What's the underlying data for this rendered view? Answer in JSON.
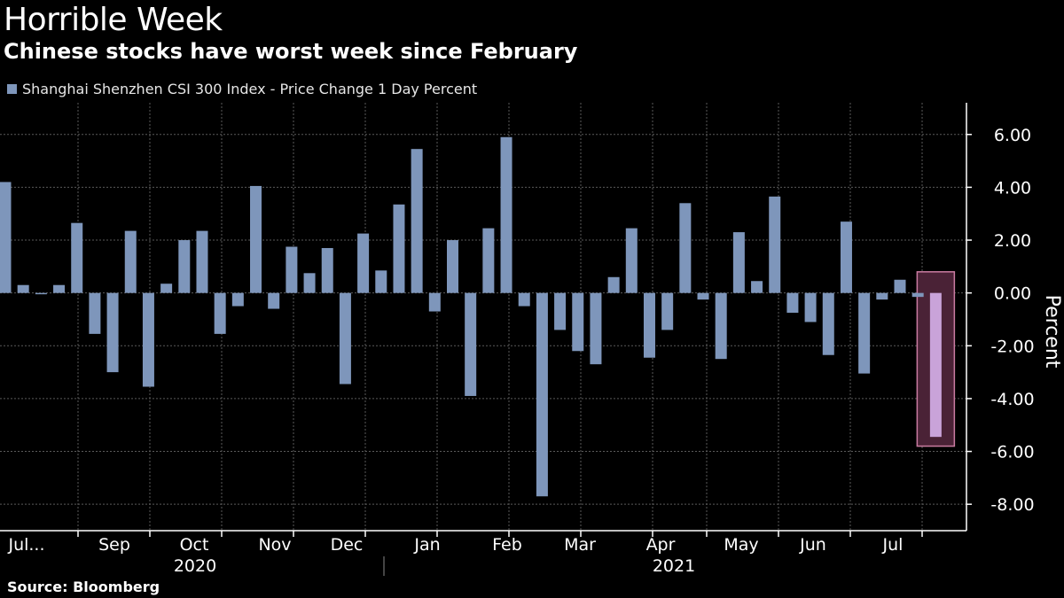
{
  "header": {
    "title": "Horrible Week",
    "subtitle": "Chinese stocks have worst week since February",
    "legend": "Shanghai Shenzhen CSI 300 Index - Price Change 1 Day Percent",
    "source": "Source: Bloomberg"
  },
  "colors": {
    "bar": "#7e96bb",
    "highlight_bar": "#c9a3d9",
    "highlight_fill": "#4a2236",
    "highlight_border": "#c97ba1",
    "grid": "#5a5a5a"
  },
  "chart_data": {
    "type": "bar",
    "title": "Horrible Week",
    "subtitle": "Chinese stocks have worst week since February",
    "ylabel": "Percent",
    "ylim": [
      -9.0,
      7.2
    ],
    "y_ticks": [
      6.0,
      4.0,
      2.0,
      0.0,
      -2.0,
      -4.0,
      -6.0,
      -8.0
    ],
    "y_tick_labels": [
      "6.00",
      "4.00",
      "2.00",
      "0.00",
      "-2.00",
      "-4.00",
      "-6.00",
      "-8.00"
    ],
    "x_month_labels": [
      "Jul...",
      "Sep",
      "Oct",
      "Nov",
      "Dec",
      "Jan",
      "Feb",
      "Mar",
      "Apr",
      "May",
      "Jun",
      "Jul"
    ],
    "year_labels": [
      "2020",
      "2021"
    ],
    "series": [
      {
        "name": "Shanghai Shenzhen CSI 300 Index - Price Change 1 Day Percent",
        "values": [
          4.2,
          0.3,
          -0.05,
          0.3,
          2.65,
          -1.55,
          -3.0,
          2.35,
          -3.55,
          0.35,
          2.0,
          2.35,
          -1.55,
          -0.5,
          4.05,
          -0.6,
          1.75,
          0.75,
          1.7,
          -3.45,
          2.25,
          0.85,
          3.35,
          5.45,
          -0.7,
          2.0,
          -3.9,
          2.45,
          5.9,
          -0.5,
          -7.7,
          -1.4,
          -2.2,
          -2.7,
          0.6,
          2.45,
          -2.45,
          -1.4,
          3.4,
          -0.25,
          -2.5,
          2.3,
          0.45,
          3.65,
          -0.75,
          -1.1,
          -2.35,
          2.7,
          -3.05,
          -0.25,
          0.5,
          -0.15,
          -5.45
        ]
      }
    ],
    "highlight": "last week (-5.45)"
  }
}
